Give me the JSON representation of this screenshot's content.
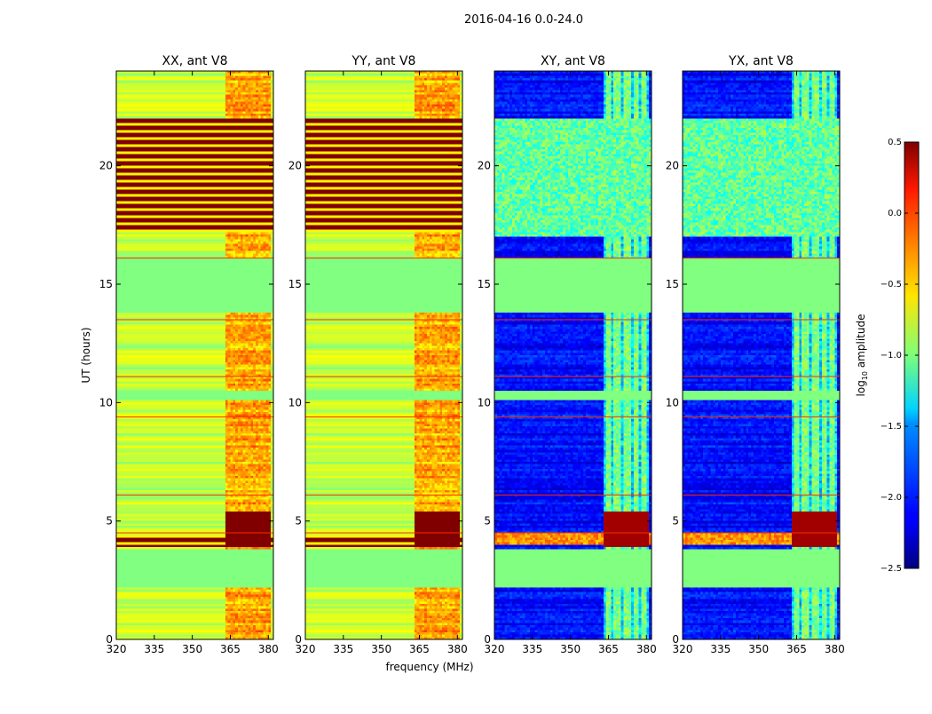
{
  "chart_data": {
    "type": "heatmap",
    "suptitle": "2016-04-16 0.0-24.0",
    "panels": [
      {
        "title": "XX, ant V8",
        "kind": "auto"
      },
      {
        "title": "YY, ant V8",
        "kind": "auto"
      },
      {
        "title": "XY, ant V8",
        "kind": "cross"
      },
      {
        "title": "YX, ant V8",
        "kind": "cross"
      }
    ],
    "xlabel": "frequency (MHz)",
    "ylabel": "UT (hours)",
    "xlim": [
      320,
      382
    ],
    "ylim": [
      0,
      24
    ],
    "xticks": [
      320,
      335,
      350,
      365,
      380
    ],
    "xtick_labels": [
      "320",
      "335",
      "350",
      "365",
      "380"
    ],
    "yticks": [
      0,
      5,
      10,
      15,
      20
    ],
    "ytick_labels": [
      "0",
      "5",
      "10",
      "15",
      "20"
    ],
    "colorbar": {
      "label": "log10 amplitude",
      "label_base": "log",
      "label_sub": "10",
      "label_rest": " amplitude",
      "range": [
        -2.5,
        0.5
      ],
      "ticks": [
        0.5,
        0.0,
        -0.5,
        -1.0,
        -1.5,
        -2.0,
        -2.5
      ],
      "tick_labels": [
        "0.5",
        "0.0",
        "−0.5",
        "−1.0",
        "−1.5",
        "−2.0",
        "−2.5"
      ],
      "colormap": "jet"
    },
    "flagged_time_ranges_ut": [
      [
        2.2,
        3.8
      ],
      [
        13.8,
        16.1
      ],
      [
        10.1,
        10.5
      ]
    ],
    "rfi_band_mhz": [
      363,
      381
    ],
    "auto_saturated_ut": [
      [
        17.2,
        22.0
      ],
      [
        3.9,
        4.4
      ]
    ],
    "auto_baseline_log10": -0.8,
    "cross_baseline_log10": -2.1
  }
}
